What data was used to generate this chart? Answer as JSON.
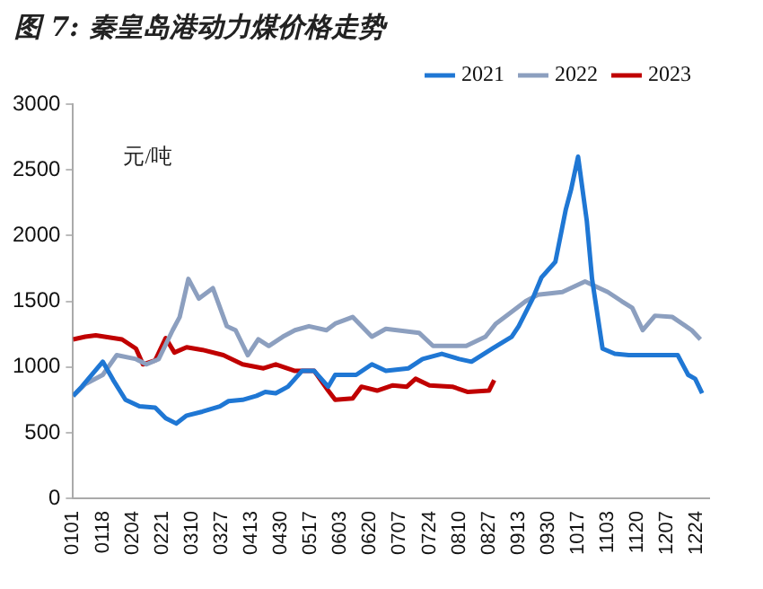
{
  "chart_data": {
    "type": "line",
    "title": "图 7: 秦皇岛港动力煤价格走势",
    "ylabel": "元/吨",
    "xlim": [
      "--01-01",
      "--12-31"
    ],
    "xticks": [
      {
        "value": "--01-01",
        "label": "0101"
      },
      {
        "value": "--01-18",
        "label": "0118"
      },
      {
        "value": "--02-04",
        "label": "0204"
      },
      {
        "value": "--02-21",
        "label": "0221"
      },
      {
        "value": "--03-10",
        "label": "0310"
      },
      {
        "value": "--03-27",
        "label": "0327"
      },
      {
        "value": "--04-13",
        "label": "0413"
      },
      {
        "value": "--04-30",
        "label": "0430"
      },
      {
        "value": "--05-17",
        "label": "0517"
      },
      {
        "value": "--06-03",
        "label": "0603"
      },
      {
        "value": "--06-20",
        "label": "0620"
      },
      {
        "value": "--07-07",
        "label": "0707"
      },
      {
        "value": "--07-24",
        "label": "0724"
      },
      {
        "value": "--08-10",
        "label": "0810"
      },
      {
        "value": "--08-27",
        "label": "0827"
      },
      {
        "value": "--09-13",
        "label": "0913"
      },
      {
        "value": "--09-30",
        "label": "0930"
      },
      {
        "value": "--10-17",
        "label": "1017"
      },
      {
        "value": "--11-03",
        "label": "1103"
      },
      {
        "value": "--11-20",
        "label": "1120"
      },
      {
        "value": "--12-07",
        "label": "1207"
      },
      {
        "value": "--12-24",
        "label": "1224"
      }
    ],
    "ylim": [
      0,
      3000
    ],
    "yticks": [
      0,
      500,
      1000,
      1500,
      2000,
      2500,
      3000
    ],
    "grid": false,
    "legend": "top",
    "marker": "none",
    "line_style": "solid",
    "series": [
      {
        "name": "2021",
        "color": "#1f77d4",
        "x": [
          "--01-01",
          "--01-06",
          "--01-18",
          "--01-24",
          "--01-31",
          "--02-08",
          "--02-17",
          "--02-23",
          "--03-01",
          "--03-07",
          "--03-16",
          "--03-26",
          "--03-31",
          "--04-08",
          "--04-16",
          "--04-21",
          "--04-27",
          "--05-04",
          "--05-12",
          "--05-19",
          "--05-27",
          "--05-31",
          "--06-12",
          "--06-21",
          "--06-29",
          "--07-12",
          "--07-20",
          "--07-31",
          "--08-10",
          "--08-17",
          "--08-29",
          "--09-09",
          "--09-13",
          "--09-21",
          "--09-26",
          "--10-04",
          "--10-10",
          "--10-13",
          "--10-17",
          "--10-22",
          "--10-25",
          "--10-31",
          "--11-07",
          "--11-15",
          "--12-13",
          "--12-19",
          "--12-23",
          "--12-27"
        ],
        "values": [
          780,
          850,
          1040,
          900,
          750,
          700,
          690,
          610,
          570,
          630,
          660,
          700,
          740,
          750,
          780,
          810,
          800,
          850,
          970,
          970,
          850,
          940,
          940,
          1020,
          970,
          990,
          1060,
          1100,
          1060,
          1040,
          1140,
          1230,
          1310,
          1520,
          1680,
          1800,
          2200,
          2350,
          2600,
          2110,
          1670,
          1140,
          1100,
          1090,
          1090,
          940,
          910,
          800
        ]
      },
      {
        "name": "2022",
        "color": "#8c9fbf",
        "x": [
          "--01-01",
          "--01-08",
          "--01-18",
          "--01-26",
          "--02-06",
          "--02-12",
          "--02-19",
          "--02-27",
          "--03-03",
          "--03-08",
          "--03-14",
          "--03-22",
          "--03-30",
          "--04-04",
          "--04-11",
          "--04-17",
          "--04-23",
          "--05-01",
          "--05-08",
          "--05-16",
          "--05-26",
          "--05-31",
          "--06-10",
          "--06-21",
          "--06-29",
          "--07-18",
          "--07-26",
          "--08-14",
          "--08-25",
          "--08-31",
          "--09-07",
          "--09-17",
          "--09-24",
          "--10-08",
          "--10-21",
          "--11-03",
          "--11-11",
          "--11-17",
          "--11-23",
          "--11-30",
          "--12-10",
          "--12-21",
          "--12-26"
        ],
        "values": [
          780,
          870,
          940,
          1090,
          1060,
          1020,
          1060,
          1280,
          1380,
          1670,
          1520,
          1600,
          1310,
          1280,
          1090,
          1210,
          1160,
          1230,
          1280,
          1310,
          1280,
          1330,
          1380,
          1230,
          1290,
          1260,
          1160,
          1160,
          1230,
          1330,
          1400,
          1500,
          1550,
          1570,
          1650,
          1570,
          1500,
          1450,
          1280,
          1390,
          1380,
          1280,
          1210
        ]
      },
      {
        "name": "2023",
        "color": "#c00000",
        "x": [
          "--01-01",
          "--01-08",
          "--01-14",
          "--01-29",
          "--02-06",
          "--02-10",
          "--02-17",
          "--02-23",
          "--02-28",
          "--03-07",
          "--03-16",
          "--03-28",
          "--04-08",
          "--04-20",
          "--04-27",
          "--05-08",
          "--05-19",
          "--05-27",
          "--05-31",
          "--06-10",
          "--06-15",
          "--06-24",
          "--07-03",
          "--07-11",
          "--07-16",
          "--07-24",
          "--08-06",
          "--08-15",
          "--08-27",
          "--08-30"
        ],
        "values": [
          1210,
          1230,
          1240,
          1210,
          1140,
          1020,
          1050,
          1220,
          1110,
          1150,
          1130,
          1090,
          1020,
          990,
          1020,
          970,
          970,
          820,
          750,
          760,
          850,
          820,
          860,
          850,
          910,
          860,
          850,
          810,
          820,
          900
        ]
      }
    ]
  }
}
